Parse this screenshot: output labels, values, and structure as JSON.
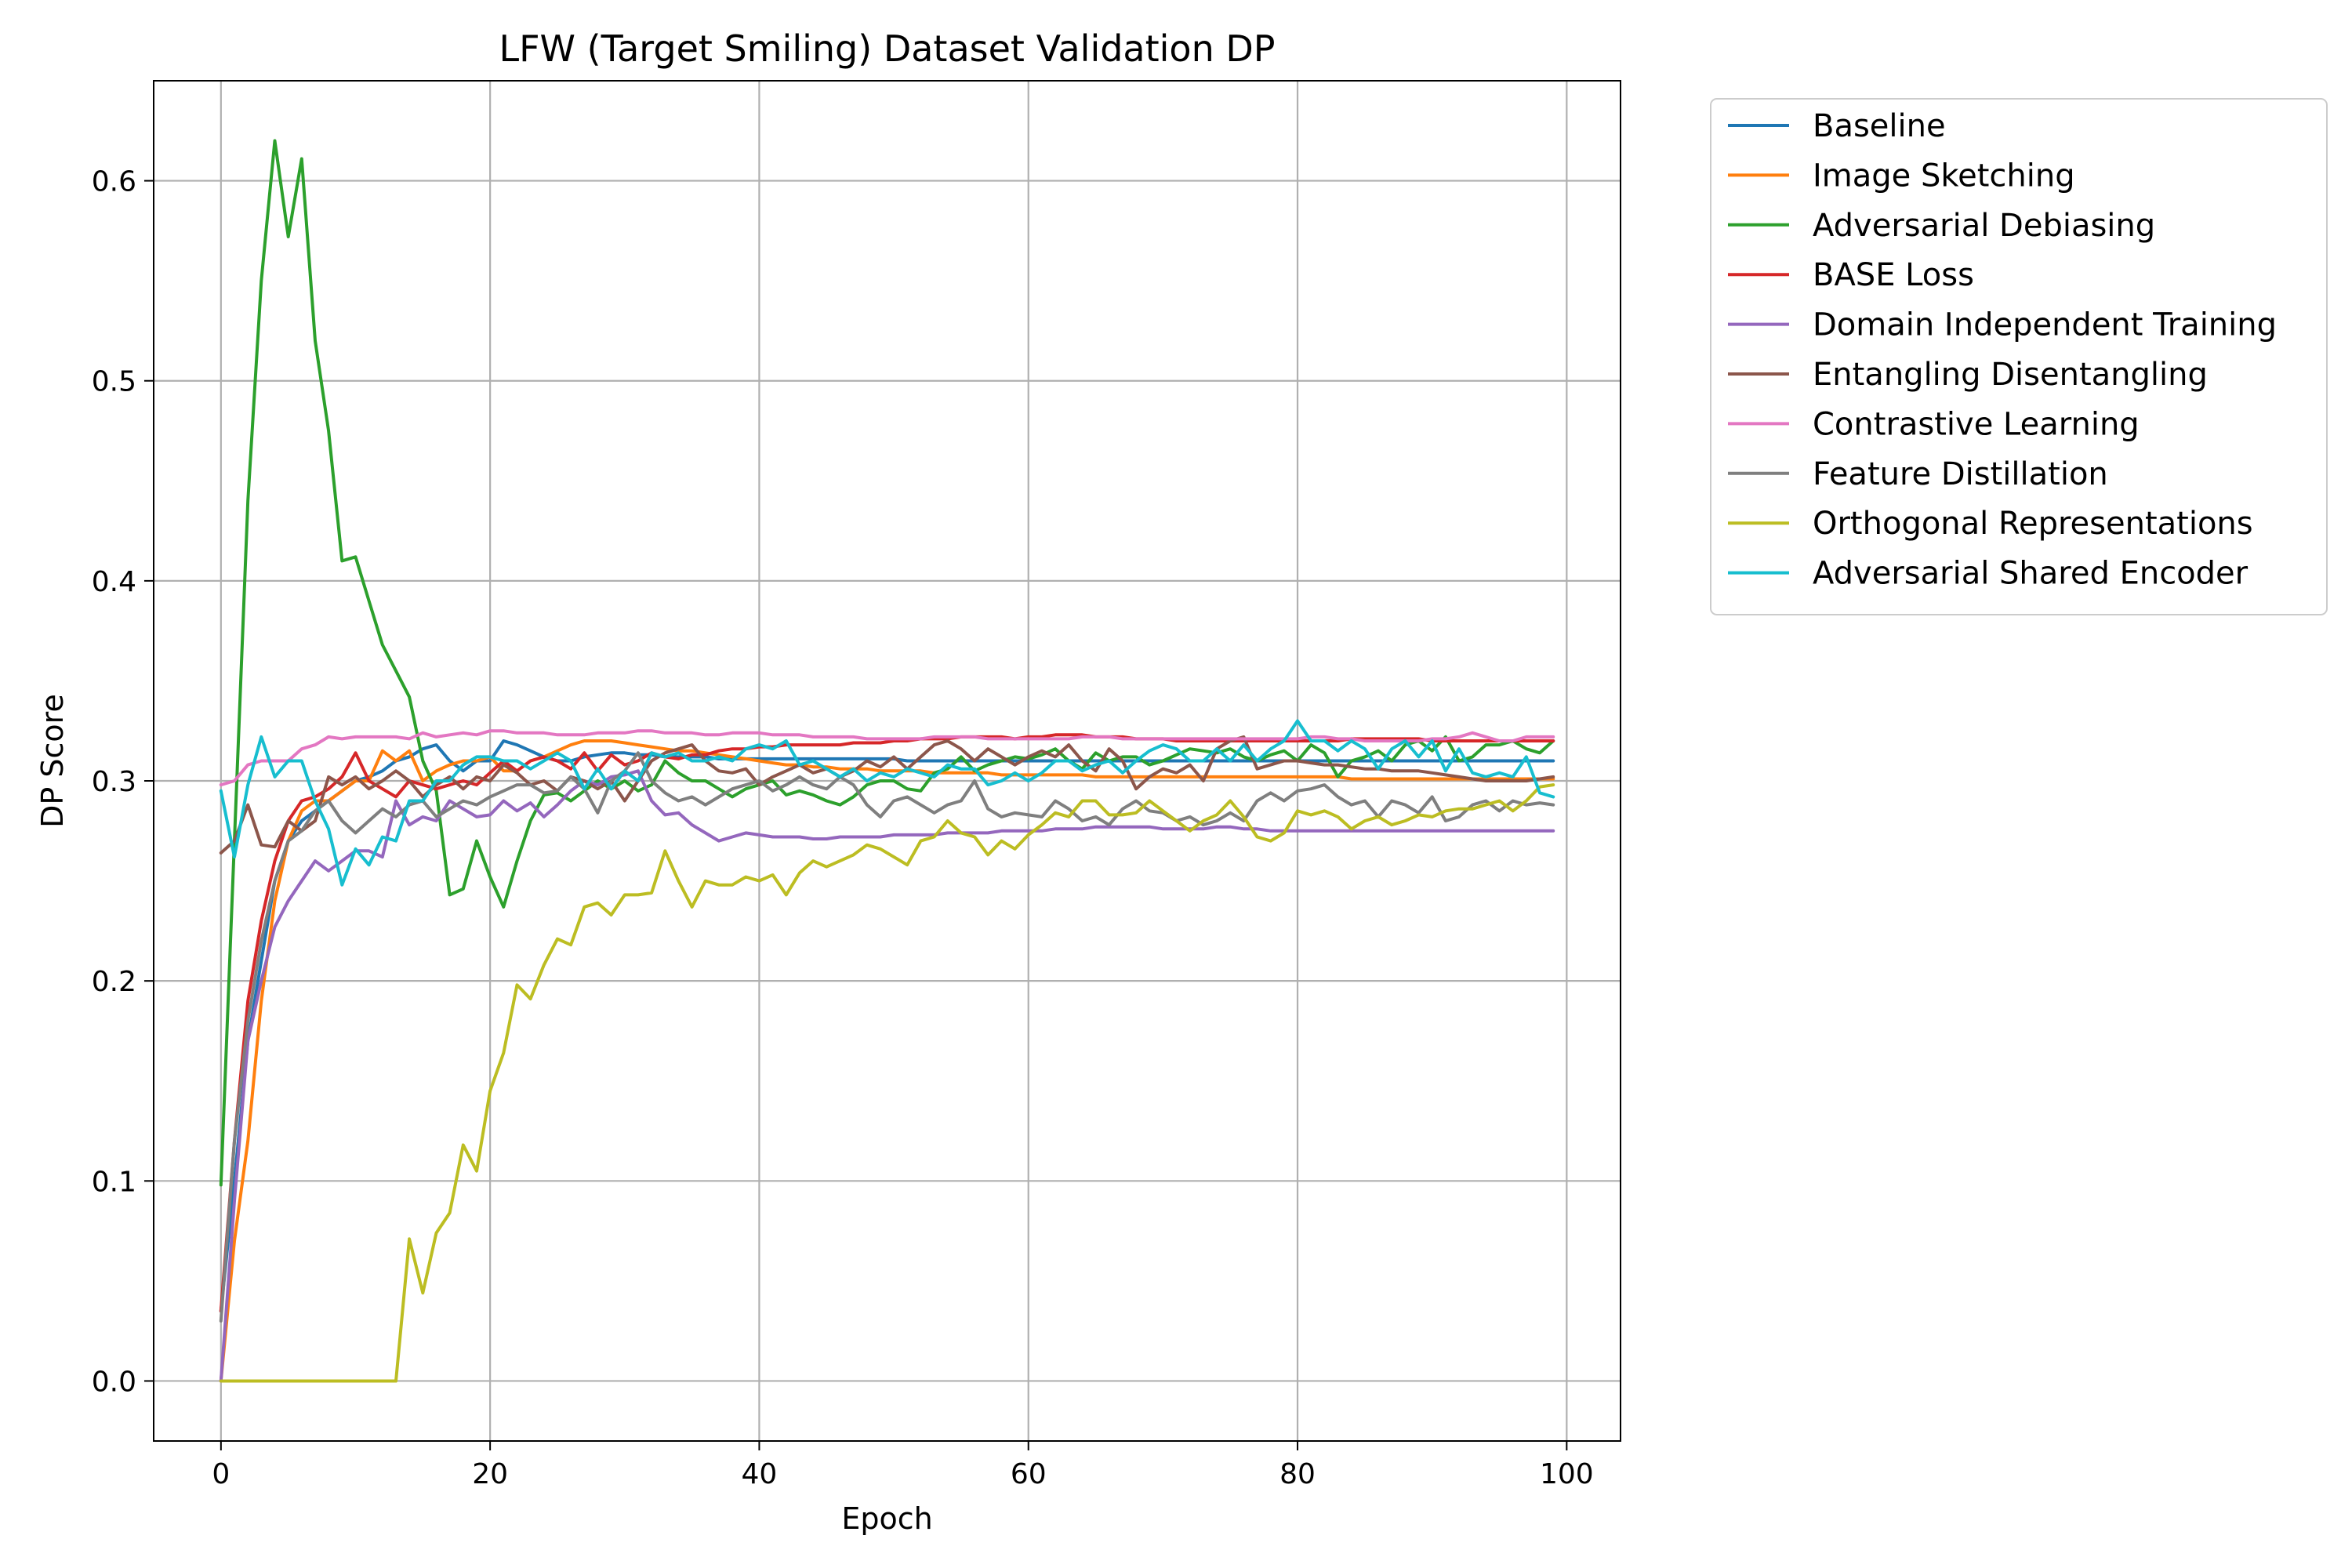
{
  "chart_data": {
    "type": "line",
    "title": "LFW (Target Smiling) Dataset Validation DP",
    "xlabel": "Epoch",
    "ylabel": "DP Score",
    "xlim": [
      -5,
      104
    ],
    "ylim": [
      -0.03,
      0.65
    ],
    "xticks": [
      0,
      20,
      40,
      60,
      80,
      100
    ],
    "yticks": [
      0.0,
      0.1,
      0.2,
      0.3,
      0.4,
      0.5,
      0.6
    ],
    "xtick_labels": [
      "0",
      "20",
      "40",
      "60",
      "80",
      "100"
    ],
    "ytick_labels": [
      "0.0",
      "0.1",
      "0.2",
      "0.3",
      "0.4",
      "0.5",
      "0.6"
    ],
    "grid": true,
    "legend_position": "outside-right-top",
    "epochs": 100,
    "series": [
      {
        "name": "Baseline",
        "color": "#1f77b4",
        "values": [
          0.035,
          0.1,
          0.17,
          0.21,
          0.25,
          0.27,
          0.28,
          0.285,
          0.29,
          0.295,
          0.3,
          0.302,
          0.305,
          0.31,
          0.312,
          0.316,
          0.318,
          0.31,
          0.305,
          0.31,
          0.31,
          0.32,
          0.318,
          0.315,
          0.312,
          0.31,
          0.31,
          0.312,
          0.313,
          0.314,
          0.314,
          0.313,
          0.313,
          0.312,
          0.312,
          0.312,
          0.312,
          0.311,
          0.311,
          0.311,
          0.311,
          0.311,
          0.311,
          0.311,
          0.311,
          0.311,
          0.311,
          0.311,
          0.311,
          0.311,
          0.311,
          0.31,
          0.31,
          0.31,
          0.31,
          0.31,
          0.31,
          0.31,
          0.31,
          0.31,
          0.31,
          0.31,
          0.31,
          0.31,
          0.31,
          0.31,
          0.31,
          0.31,
          0.31,
          0.31,
          0.31,
          0.31,
          0.31,
          0.31,
          0.31,
          0.31,
          0.31,
          0.31,
          0.31,
          0.31,
          0.31,
          0.31,
          0.31,
          0.31,
          0.31,
          0.31,
          0.31,
          0.31,
          0.31,
          0.31,
          0.31,
          0.31,
          0.31,
          0.31,
          0.31,
          0.31,
          0.31,
          0.31,
          0.31,
          0.31
        ]
      },
      {
        "name": "Image Sketching",
        "color": "#ff7f0e",
        "values": [
          0.0,
          0.07,
          0.12,
          0.19,
          0.24,
          0.27,
          0.285,
          0.29,
          0.29,
          0.295,
          0.3,
          0.3,
          0.315,
          0.31,
          0.315,
          0.3,
          0.305,
          0.308,
          0.31,
          0.31,
          0.312,
          0.305,
          0.305,
          0.31,
          0.312,
          0.315,
          0.318,
          0.32,
          0.32,
          0.32,
          0.319,
          0.318,
          0.317,
          0.316,
          0.315,
          0.315,
          0.314,
          0.313,
          0.312,
          0.311,
          0.31,
          0.309,
          0.308,
          0.308,
          0.307,
          0.307,
          0.306,
          0.306,
          0.306,
          0.305,
          0.305,
          0.305,
          0.305,
          0.304,
          0.304,
          0.304,
          0.304,
          0.304,
          0.303,
          0.303,
          0.303,
          0.303,
          0.303,
          0.303,
          0.303,
          0.302,
          0.302,
          0.302,
          0.302,
          0.302,
          0.302,
          0.302,
          0.302,
          0.302,
          0.302,
          0.302,
          0.302,
          0.302,
          0.302,
          0.302,
          0.302,
          0.302,
          0.302,
          0.302,
          0.301,
          0.301,
          0.301,
          0.301,
          0.301,
          0.301,
          0.301,
          0.301,
          0.301,
          0.301,
          0.301,
          0.301,
          0.301,
          0.301,
          0.301,
          0.301
        ]
      },
      {
        "name": "Adversarial Debiasing",
        "color": "#2ca02c",
        "values": [
          0.098,
          0.27,
          0.44,
          0.55,
          0.62,
          0.572,
          0.611,
          0.52,
          0.475,
          0.41,
          0.412,
          0.39,
          0.368,
          0.355,
          0.342,
          0.31,
          0.295,
          0.243,
          0.246,
          0.27,
          0.252,
          0.237,
          0.26,
          0.28,
          0.293,
          0.294,
          0.29,
          0.295,
          0.3,
          0.296,
          0.3,
          0.295,
          0.298,
          0.31,
          0.304,
          0.3,
          0.3,
          0.296,
          0.292,
          0.296,
          0.298,
          0.3,
          0.293,
          0.295,
          0.293,
          0.29,
          0.288,
          0.292,
          0.298,
          0.3,
          0.3,
          0.296,
          0.295,
          0.304,
          0.306,
          0.312,
          0.305,
          0.308,
          0.31,
          0.312,
          0.311,
          0.313,
          0.316,
          0.31,
          0.306,
          0.314,
          0.31,
          0.312,
          0.312,
          0.308,
          0.31,
          0.313,
          0.316,
          0.315,
          0.314,
          0.316,
          0.312,
          0.31,
          0.313,
          0.315,
          0.31,
          0.318,
          0.314,
          0.302,
          0.31,
          0.312,
          0.315,
          0.31,
          0.318,
          0.32,
          0.315,
          0.322,
          0.31,
          0.312,
          0.318,
          0.318,
          0.32,
          0.316,
          0.314,
          0.32
        ]
      },
      {
        "name": "BASE Loss",
        "color": "#d62728",
        "values": [
          0.035,
          0.12,
          0.19,
          0.23,
          0.26,
          0.28,
          0.29,
          0.292,
          0.296,
          0.302,
          0.314,
          0.3,
          0.296,
          0.292,
          0.3,
          0.298,
          0.296,
          0.298,
          0.3,
          0.298,
          0.304,
          0.31,
          0.305,
          0.31,
          0.312,
          0.31,
          0.306,
          0.314,
          0.305,
          0.313,
          0.308,
          0.31,
          0.314,
          0.312,
          0.311,
          0.313,
          0.313,
          0.315,
          0.316,
          0.316,
          0.317,
          0.317,
          0.318,
          0.318,
          0.318,
          0.318,
          0.318,
          0.319,
          0.319,
          0.319,
          0.32,
          0.32,
          0.321,
          0.321,
          0.321,
          0.322,
          0.322,
          0.322,
          0.322,
          0.321,
          0.322,
          0.322,
          0.323,
          0.323,
          0.323,
          0.322,
          0.322,
          0.322,
          0.321,
          0.321,
          0.321,
          0.32,
          0.32,
          0.32,
          0.32,
          0.32,
          0.32,
          0.32,
          0.32,
          0.32,
          0.32,
          0.32,
          0.32,
          0.32,
          0.321,
          0.321,
          0.321,
          0.321,
          0.321,
          0.321,
          0.32,
          0.32,
          0.32,
          0.32,
          0.32,
          0.32,
          0.32,
          0.32,
          0.32,
          0.32
        ]
      },
      {
        "name": "Domain Independent Training",
        "color": "#9467bd",
        "values": [
          0.0,
          0.09,
          0.17,
          0.2,
          0.227,
          0.24,
          0.25,
          0.26,
          0.255,
          0.26,
          0.265,
          0.265,
          0.262,
          0.29,
          0.278,
          0.282,
          0.28,
          0.29,
          0.286,
          0.282,
          0.283,
          0.29,
          0.285,
          0.289,
          0.282,
          0.288,
          0.295,
          0.3,
          0.298,
          0.302,
          0.303,
          0.305,
          0.29,
          0.283,
          0.284,
          0.278,
          0.274,
          0.27,
          0.272,
          0.274,
          0.273,
          0.272,
          0.272,
          0.272,
          0.271,
          0.271,
          0.272,
          0.272,
          0.272,
          0.272,
          0.273,
          0.273,
          0.273,
          0.273,
          0.274,
          0.274,
          0.274,
          0.274,
          0.275,
          0.275,
          0.275,
          0.275,
          0.276,
          0.276,
          0.276,
          0.277,
          0.277,
          0.277,
          0.277,
          0.277,
          0.276,
          0.276,
          0.276,
          0.276,
          0.277,
          0.277,
          0.276,
          0.276,
          0.275,
          0.275,
          0.275,
          0.275,
          0.275,
          0.275,
          0.275,
          0.275,
          0.275,
          0.275,
          0.275,
          0.275,
          0.275,
          0.275,
          0.275,
          0.275,
          0.275,
          0.275,
          0.275,
          0.275,
          0.275,
          0.275
        ]
      },
      {
        "name": "Entangling Disentangling",
        "color": "#8c564b",
        "values": [
          0.264,
          0.27,
          0.288,
          0.268,
          0.267,
          0.28,
          0.275,
          0.28,
          0.302,
          0.298,
          0.302,
          0.296,
          0.3,
          0.305,
          0.3,
          0.292,
          0.298,
          0.302,
          0.296,
          0.302,
          0.3,
          0.308,
          0.304,
          0.298,
          0.3,
          0.295,
          0.302,
          0.3,
          0.296,
          0.3,
          0.29,
          0.3,
          0.31,
          0.314,
          0.316,
          0.318,
          0.31,
          0.305,
          0.304,
          0.306,
          0.298,
          0.302,
          0.305,
          0.308,
          0.304,
          0.306,
          0.302,
          0.305,
          0.31,
          0.307,
          0.312,
          0.306,
          0.312,
          0.318,
          0.32,
          0.316,
          0.31,
          0.316,
          0.312,
          0.308,
          0.312,
          0.315,
          0.312,
          0.318,
          0.31,
          0.305,
          0.316,
          0.31,
          0.296,
          0.302,
          0.306,
          0.304,
          0.308,
          0.3,
          0.316,
          0.32,
          0.322,
          0.306,
          0.308,
          0.31,
          0.31,
          0.309,
          0.308,
          0.308,
          0.307,
          0.306,
          0.306,
          0.305,
          0.305,
          0.305,
          0.304,
          0.303,
          0.302,
          0.301,
          0.3,
          0.3,
          0.3,
          0.3,
          0.301,
          0.302
        ]
      },
      {
        "name": "Contrastive Learning",
        "color": "#e377c2",
        "values": [
          0.298,
          0.3,
          0.308,
          0.31,
          0.31,
          0.31,
          0.316,
          0.318,
          0.322,
          0.321,
          0.322,
          0.322,
          0.322,
          0.322,
          0.321,
          0.324,
          0.322,
          0.323,
          0.324,
          0.323,
          0.325,
          0.325,
          0.324,
          0.324,
          0.324,
          0.323,
          0.323,
          0.323,
          0.324,
          0.324,
          0.324,
          0.325,
          0.325,
          0.324,
          0.324,
          0.324,
          0.323,
          0.323,
          0.324,
          0.324,
          0.324,
          0.323,
          0.323,
          0.323,
          0.322,
          0.322,
          0.322,
          0.322,
          0.321,
          0.321,
          0.321,
          0.321,
          0.321,
          0.322,
          0.322,
          0.322,
          0.322,
          0.321,
          0.321,
          0.321,
          0.321,
          0.321,
          0.321,
          0.321,
          0.322,
          0.322,
          0.322,
          0.321,
          0.321,
          0.321,
          0.321,
          0.321,
          0.321,
          0.321,
          0.321,
          0.321,
          0.321,
          0.321,
          0.321,
          0.321,
          0.321,
          0.322,
          0.322,
          0.321,
          0.321,
          0.32,
          0.32,
          0.32,
          0.32,
          0.32,
          0.321,
          0.321,
          0.322,
          0.324,
          0.322,
          0.32,
          0.32,
          0.322,
          0.322,
          0.322
        ]
      },
      {
        "name": "Feature Distillation",
        "color": "#7f7f7f",
        "values": [
          0.03,
          0.12,
          0.18,
          0.22,
          0.25,
          0.27,
          0.275,
          0.285,
          0.29,
          0.28,
          0.274,
          0.28,
          0.286,
          0.282,
          0.288,
          0.29,
          0.282,
          0.286,
          0.29,
          0.288,
          0.292,
          0.295,
          0.298,
          0.298,
          0.294,
          0.295,
          0.302,
          0.296,
          0.284,
          0.3,
          0.305,
          0.314,
          0.3,
          0.294,
          0.29,
          0.292,
          0.288,
          0.292,
          0.296,
          0.298,
          0.3,
          0.295,
          0.298,
          0.302,
          0.298,
          0.296,
          0.302,
          0.298,
          0.288,
          0.282,
          0.29,
          0.292,
          0.288,
          0.284,
          0.288,
          0.29,
          0.3,
          0.286,
          0.282,
          0.284,
          0.283,
          0.282,
          0.29,
          0.286,
          0.28,
          0.282,
          0.278,
          0.286,
          0.29,
          0.285,
          0.284,
          0.28,
          0.282,
          0.278,
          0.28,
          0.284,
          0.28,
          0.29,
          0.294,
          0.29,
          0.295,
          0.296,
          0.298,
          0.292,
          0.288,
          0.29,
          0.282,
          0.29,
          0.288,
          0.284,
          0.292,
          0.28,
          0.282,
          0.288,
          0.29,
          0.285,
          0.29,
          0.288,
          0.289,
          0.288
        ]
      },
      {
        "name": "Orthogonal Representations",
        "color": "#bcbd22",
        "values": [
          0.0,
          0.0,
          0.0,
          0.0,
          0.0,
          0.0,
          0.0,
          0.0,
          0.0,
          0.0,
          0.0,
          0.0,
          0.0,
          0.0,
          0.071,
          0.044,
          0.074,
          0.084,
          0.118,
          0.105,
          0.145,
          0.164,
          0.198,
          0.191,
          0.208,
          0.221,
          0.218,
          0.237,
          0.239,
          0.233,
          0.243,
          0.243,
          0.244,
          0.265,
          0.25,
          0.237,
          0.25,
          0.248,
          0.248,
          0.252,
          0.25,
          0.253,
          0.243,
          0.254,
          0.26,
          0.257,
          0.26,
          0.263,
          0.268,
          0.266,
          0.262,
          0.258,
          0.27,
          0.272,
          0.28,
          0.274,
          0.272,
          0.263,
          0.27,
          0.266,
          0.273,
          0.278,
          0.284,
          0.282,
          0.29,
          0.29,
          0.283,
          0.283,
          0.284,
          0.29,
          0.285,
          0.28,
          0.275,
          0.28,
          0.283,
          0.29,
          0.282,
          0.272,
          0.27,
          0.274,
          0.285,
          0.283,
          0.285,
          0.282,
          0.276,
          0.28,
          0.282,
          0.278,
          0.28,
          0.283,
          0.282,
          0.285,
          0.286,
          0.286,
          0.288,
          0.29,
          0.285,
          0.29,
          0.297,
          0.298
        ]
      },
      {
        "name": "Adversarial Shared Encoder",
        "color": "#17becf",
        "values": [
          0.295,
          0.262,
          0.298,
          0.322,
          0.302,
          0.31,
          0.31,
          0.29,
          0.276,
          0.248,
          0.266,
          0.258,
          0.272,
          0.27,
          0.29,
          0.29,
          0.3,
          0.3,
          0.308,
          0.312,
          0.312,
          0.31,
          0.31,
          0.306,
          0.31,
          0.314,
          0.31,
          0.296,
          0.306,
          0.296,
          0.305,
          0.3,
          0.314,
          0.312,
          0.314,
          0.31,
          0.31,
          0.312,
          0.31,
          0.316,
          0.318,
          0.316,
          0.32,
          0.308,
          0.31,
          0.306,
          0.302,
          0.306,
          0.3,
          0.304,
          0.302,
          0.306,
          0.304,
          0.302,
          0.308,
          0.306,
          0.306,
          0.298,
          0.3,
          0.304,
          0.3,
          0.304,
          0.31,
          0.31,
          0.305,
          0.308,
          0.31,
          0.304,
          0.31,
          0.315,
          0.318,
          0.316,
          0.31,
          0.31,
          0.316,
          0.31,
          0.318,
          0.31,
          0.316,
          0.32,
          0.33,
          0.32,
          0.32,
          0.315,
          0.32,
          0.316,
          0.306,
          0.316,
          0.32,
          0.312,
          0.32,
          0.305,
          0.316,
          0.304,
          0.302,
          0.304,
          0.302,
          0.312,
          0.294,
          0.292
        ]
      }
    ]
  }
}
